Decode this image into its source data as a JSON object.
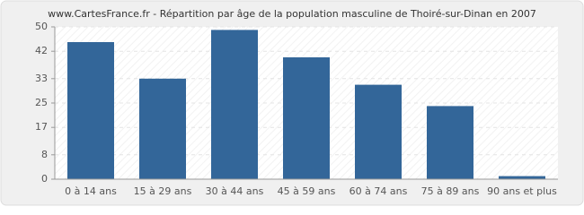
{
  "chart_data": {
    "type": "bar",
    "title": "www.CartesFrance.fr - Répartition par âge de la population masculine de Thoiré-sur-Dinan en 2007",
    "categories": [
      "0 à 14 ans",
      "15 à 29 ans",
      "30 à 44 ans",
      "45 à 59 ans",
      "60 à 74 ans",
      "75 à 89 ans",
      "90 ans et plus"
    ],
    "values": [
      45,
      33,
      49,
      40,
      31,
      24,
      1
    ],
    "color": "#336699",
    "ylim": [
      0,
      50
    ],
    "yticks": [
      0,
      8,
      17,
      25,
      33,
      42,
      50
    ],
    "grid": true
  }
}
